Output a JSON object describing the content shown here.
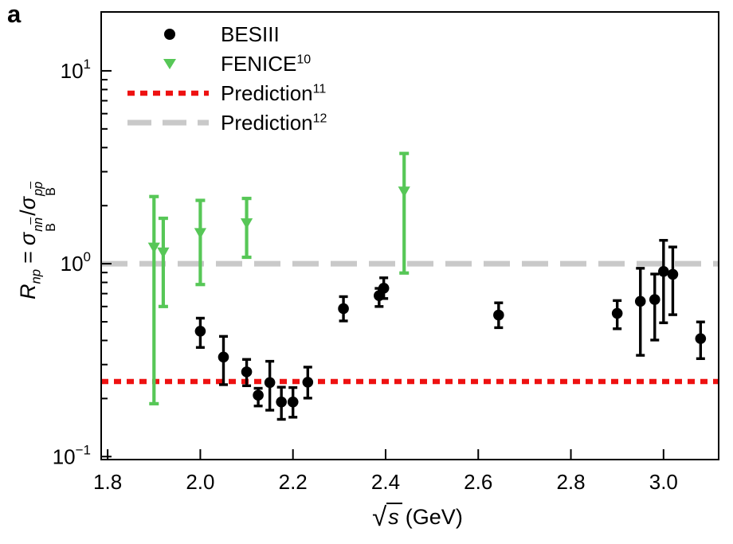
{
  "panel_label": "a",
  "labels": {
    "x": {
      "sqrt": "√",
      "s": "s",
      "unit": "(GeV)"
    },
    "y": {
      "R": "R",
      "np": "np",
      "eq": "=",
      "sigma1": "σ",
      "n1": "n",
      "n2": "n",
      "B1": "B",
      "slash": "/",
      "sigma2": "σ",
      "p1": "p",
      "p2": "p",
      "B2": "B"
    }
  },
  "chart_data": {
    "type": "scatter",
    "title": "",
    "xlabel": "√s (GeV)",
    "ylabel": "R_np = σ_B^nn̄ / σ_B^pp̄",
    "grid": false,
    "legend_position": "inside top-left",
    "x_axis": {
      "scale": "linear",
      "lim": [
        1.786,
        3.119
      ],
      "ticks": [
        {
          "v": 1.8,
          "label": "1.8"
        },
        {
          "v": 2.0,
          "label": "2.0"
        },
        {
          "v": 2.2,
          "label": "2.2"
        },
        {
          "v": 2.4,
          "label": "2.4"
        },
        {
          "v": 2.6,
          "label": "2.6"
        },
        {
          "v": 2.8,
          "label": "2.8"
        },
        {
          "v": 3.0,
          "label": "3.0"
        }
      ]
    },
    "y_axis": {
      "scale": "log",
      "lim": [
        0.0965,
        20.2
      ],
      "ticks": [
        {
          "v": 10,
          "base": "10",
          "exp": "1"
        },
        {
          "v": 1,
          "base": "10",
          "exp": "0"
        },
        {
          "v": 0.1,
          "base": "10",
          "exp": "−1"
        }
      ],
      "minor_ticks": [
        0.2,
        0.3,
        0.4,
        0.5,
        0.6,
        0.7,
        0.8,
        0.9,
        2,
        3,
        4,
        5,
        6,
        7,
        8,
        9
      ]
    },
    "series": [
      {
        "name": "BESIII",
        "sup": "",
        "marker": "circle",
        "color": "#000000",
        "points": [
          [
            2.0,
            0.447,
            0.368,
            0.522
          ],
          [
            2.05,
            0.328,
            0.236,
            0.42
          ],
          [
            2.1,
            0.275,
            0.233,
            0.319
          ],
          [
            2.125,
            0.208,
            0.183,
            0.226
          ],
          [
            2.15,
            0.242,
            0.174,
            0.312
          ],
          [
            2.175,
            0.192,
            0.156,
            0.229
          ],
          [
            2.2,
            0.192,
            0.16,
            0.228
          ],
          [
            2.232,
            0.243,
            0.201,
            0.291
          ],
          [
            2.309,
            0.585,
            0.505,
            0.675
          ],
          [
            2.386,
            0.683,
            0.6,
            0.745
          ],
          [
            2.396,
            0.747,
            0.66,
            0.845
          ],
          [
            2.644,
            0.542,
            0.466,
            0.627
          ],
          [
            2.9,
            0.553,
            0.46,
            0.644
          ],
          [
            2.95,
            0.638,
            0.335,
            0.947
          ],
          [
            2.981,
            0.652,
            0.402,
            0.884
          ],
          [
            3.0,
            0.912,
            0.494,
            1.322
          ],
          [
            3.02,
            0.881,
            0.544,
            1.221
          ],
          [
            3.08,
            0.409,
            0.322,
            0.499
          ]
        ]
      },
      {
        "name": "FENICE",
        "sup": "10",
        "marker": "triangle-down",
        "color": "#57c757",
        "points": [
          [
            1.9,
            1.22,
            0.188,
            2.23
          ],
          [
            1.92,
            1.15,
            0.6,
            1.72
          ],
          [
            2.0,
            1.45,
            0.78,
            2.13
          ],
          [
            2.1,
            1.63,
            1.08,
            2.18
          ],
          [
            2.44,
            2.38,
            0.895,
            3.73
          ]
        ]
      },
      {
        "name": "Prediction",
        "sup": "11",
        "style": "dotted",
        "color": "#ee1111",
        "hline": 0.245
      },
      {
        "name": "Prediction",
        "sup": "12",
        "style": "dashed",
        "color": "#c9c9c9",
        "hline": 1.0
      }
    ]
  }
}
